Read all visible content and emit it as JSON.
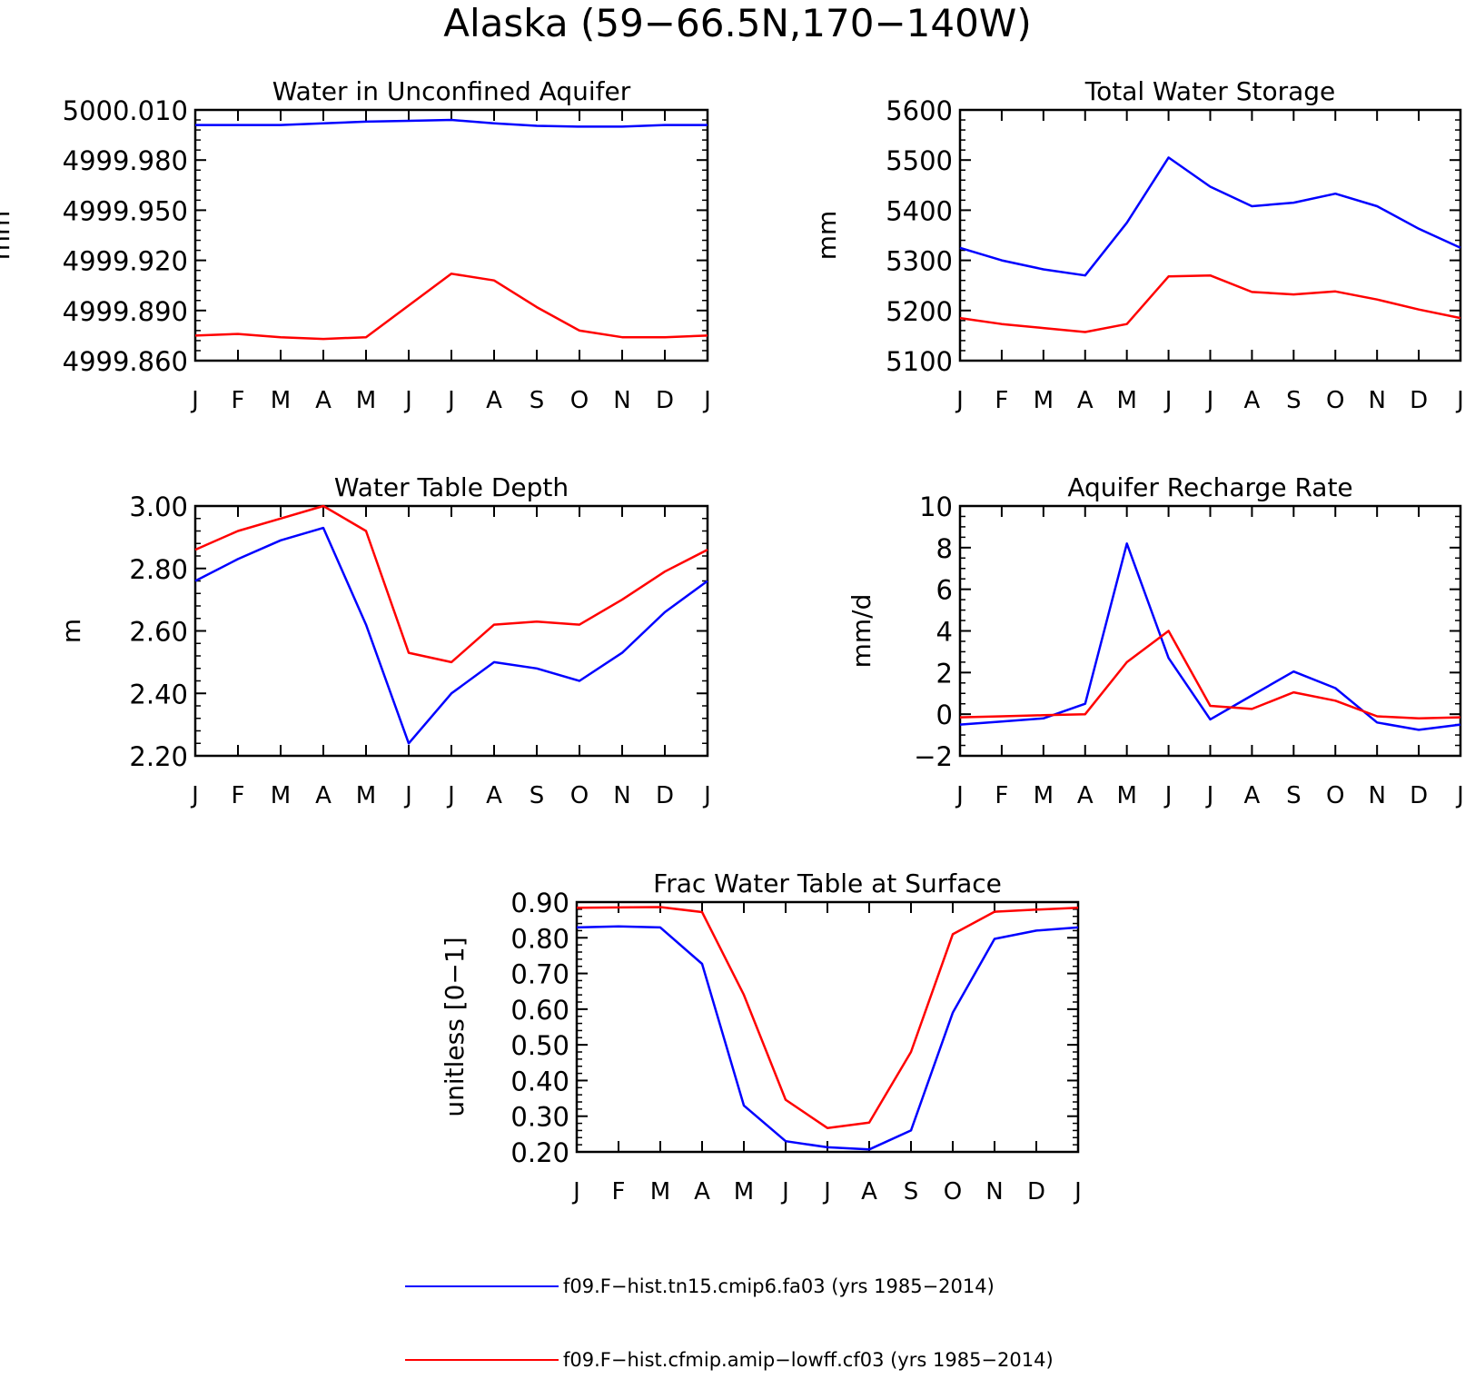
{
  "figure": {
    "title": "Alaska (59−66.5N,170−140W)"
  },
  "colors": {
    "series1": "#0000ff",
    "series2": "#ff0000"
  },
  "legend": {
    "items": [
      {
        "label": "f09.F−hist.tn15.cmip6.fa03 (yrs 1985−2014)",
        "color": "#0000ff"
      },
      {
        "label": "f09.F−hist.cfmip.amip−lowff.cf03 (yrs 1985−2014)",
        "color": "#ff0000"
      }
    ]
  },
  "chart_data": [
    {
      "type": "line",
      "title": "Water in Unconfined Aquifer",
      "ylabel": "mm",
      "xlabel": "",
      "categories": [
        "J",
        "F",
        "M",
        "A",
        "M",
        "J",
        "J",
        "A",
        "S",
        "O",
        "N",
        "D",
        "J"
      ],
      "ylim": [
        4999.86,
        5000.01
      ],
      "yticks": [
        4999.86,
        4999.89,
        4999.92,
        4999.95,
        4999.98,
        5000.01
      ],
      "ytick_labels": [
        "4999.860",
        "4999.890",
        "4999.920",
        "4999.950",
        "4999.980",
        "5000.010"
      ],
      "minor_y_step": 0.006,
      "series": [
        {
          "values": [
            5000.001,
            5000.001,
            5000.001,
            5000.002,
            5000.003,
            5000.0035,
            5000.004,
            5000.002,
            5000.0005,
            5000.0,
            5000.0,
            5000.001,
            5000.001
          ]
        },
        {
          "values": [
            4999.875,
            4999.876,
            4999.874,
            4999.873,
            4999.874,
            4999.893,
            4999.912,
            4999.908,
            4999.892,
            4999.878,
            4999.874,
            4999.874,
            4999.875
          ]
        }
      ]
    },
    {
      "type": "line",
      "title": "Total Water Storage",
      "ylabel": "mm",
      "xlabel": "",
      "categories": [
        "J",
        "F",
        "M",
        "A",
        "M",
        "J",
        "J",
        "A",
        "S",
        "O",
        "N",
        "D",
        "J"
      ],
      "ylim": [
        5100,
        5600
      ],
      "yticks": [
        5100,
        5200,
        5300,
        5400,
        5500,
        5600
      ],
      "ytick_labels": [
        "5100",
        "5200",
        "5300",
        "5400",
        "5500",
        "5600"
      ],
      "minor_y_step": 20,
      "series": [
        {
          "values": [
            5325,
            5300,
            5282,
            5270,
            5375,
            5505,
            5447,
            5408,
            5415,
            5433,
            5408,
            5363,
            5325
          ]
        },
        {
          "values": [
            5185,
            5173,
            5165,
            5157,
            5173,
            5268,
            5270,
            5237,
            5232,
            5238,
            5222,
            5202,
            5185
          ]
        }
      ]
    },
    {
      "type": "line",
      "title": "Water Table Depth",
      "ylabel": "m",
      "xlabel": "",
      "categories": [
        "J",
        "F",
        "M",
        "A",
        "M",
        "J",
        "J",
        "A",
        "S",
        "O",
        "N",
        "D",
        "J"
      ],
      "ylim": [
        2.2,
        3.0
      ],
      "yticks": [
        2.2,
        2.4,
        2.6,
        2.8,
        3.0
      ],
      "ytick_labels": [
        "2.20",
        "2.40",
        "2.60",
        "2.80",
        "3.00"
      ],
      "minor_y_step": 0.04,
      "series": [
        {
          "values": [
            2.76,
            2.83,
            2.89,
            2.93,
            2.62,
            2.24,
            2.4,
            2.5,
            2.48,
            2.44,
            2.53,
            2.66,
            2.76
          ]
        },
        {
          "values": [
            2.86,
            2.92,
            2.96,
            3.0,
            2.92,
            2.53,
            2.5,
            2.62,
            2.63,
            2.62,
            2.7,
            2.79,
            2.86
          ]
        }
      ]
    },
    {
      "type": "line",
      "title": "Aquifer Recharge Rate",
      "ylabel": "mm/d",
      "xlabel": "",
      "categories": [
        "J",
        "F",
        "M",
        "A",
        "M",
        "J",
        "J",
        "A",
        "S",
        "O",
        "N",
        "D",
        "J"
      ],
      "ylim": [
        -2,
        10
      ],
      "yticks": [
        -2,
        0,
        2,
        4,
        6,
        8,
        10
      ],
      "ytick_labels": [
        "−2",
        "0",
        "2",
        "4",
        "6",
        "8",
        "10"
      ],
      "minor_y_step": 0.5,
      "series": [
        {
          "values": [
            -0.5,
            -0.35,
            -0.2,
            0.5,
            8.2,
            2.7,
            -0.25,
            0.9,
            2.05,
            1.25,
            -0.4,
            -0.75,
            -0.5
          ]
        },
        {
          "values": [
            -0.15,
            -0.1,
            -0.05,
            0.0,
            2.5,
            4.0,
            0.4,
            0.25,
            1.05,
            0.65,
            -0.1,
            -0.2,
            -0.15
          ]
        }
      ]
    },
    {
      "type": "line",
      "title": "Frac Water Table at Surface",
      "ylabel": "unitless [0−1]",
      "xlabel": "",
      "categories": [
        "J",
        "F",
        "M",
        "A",
        "M",
        "J",
        "J",
        "A",
        "S",
        "O",
        "N",
        "D",
        "J"
      ],
      "ylim": [
        0.2,
        0.9
      ],
      "yticks": [
        0.2,
        0.3,
        0.4,
        0.5,
        0.6,
        0.7,
        0.8,
        0.9
      ],
      "ytick_labels": [
        "0.20",
        "0.30",
        "0.40",
        "0.50",
        "0.60",
        "0.70",
        "0.80",
        "0.90"
      ],
      "minor_y_step": 0.02,
      "series": [
        {
          "values": [
            0.829,
            0.832,
            0.829,
            0.727,
            0.33,
            0.23,
            0.213,
            0.207,
            0.26,
            0.59,
            0.797,
            0.82,
            0.829
          ]
        },
        {
          "values": [
            0.884,
            0.885,
            0.886,
            0.872,
            0.64,
            0.346,
            0.267,
            0.282,
            0.48,
            0.81,
            0.873,
            0.879,
            0.884
          ]
        }
      ]
    }
  ]
}
